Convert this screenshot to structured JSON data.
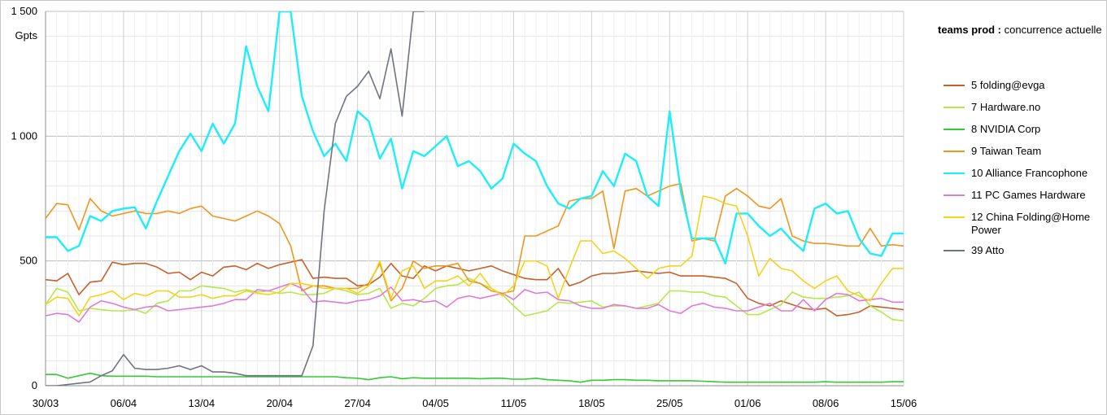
{
  "legend": {
    "title_bold": "teams prod :",
    "title_rest": "concurrence actuelle"
  },
  "chart_data": {
    "type": "line",
    "title": "teams prod : concurrence actuelle",
    "xlabel": "",
    "ylabel": "Gpts",
    "ylim": [
      0,
      1500
    ],
    "yticks": [
      0,
      500,
      1000,
      1500
    ],
    "ytick_labels": [
      "0",
      "500",
      "1 000",
      "1 500"
    ],
    "xtick_labels": [
      "30/03",
      "06/04",
      "13/04",
      "20/04",
      "27/04",
      "04/05",
      "11/05",
      "18/05",
      "25/05",
      "01/06",
      "08/06",
      "15/06"
    ],
    "grid": true,
    "legend_position": "right",
    "n_days": 78,
    "series": [
      {
        "name": "5 folding@evga",
        "color": "#c8602a",
        "values": [
          425,
          420,
          450,
          365,
          415,
          420,
          495,
          485,
          490,
          490,
          475,
          450,
          455,
          425,
          455,
          440,
          475,
          480,
          465,
          490,
          470,
          485,
          495,
          505,
          430,
          435,
          430,
          430,
          400,
          405,
          435,
          490,
          440,
          430,
          480,
          460,
          480,
          470,
          460,
          470,
          480,
          460,
          445,
          430,
          425,
          425,
          470,
          400,
          415,
          440,
          450,
          450,
          455,
          460,
          455,
          450,
          455,
          440,
          440,
          440,
          435,
          430,
          410,
          350,
          330,
          320,
          340,
          325,
          310,
          305,
          310,
          280,
          285,
          295,
          320,
          315,
          310,
          305
        ]
      },
      {
        "name": "7 Hardware.no",
        "color": "#b4e84a",
        "values": [
          325,
          390,
          375,
          300,
          310,
          305,
          300,
          300,
          305,
          290,
          330,
          340,
          380,
          380,
          400,
          395,
          390,
          375,
          385,
          375,
          380,
          370,
          375,
          365,
          365,
          370,
          390,
          380,
          365,
          370,
          390,
          310,
          330,
          320,
          350,
          390,
          400,
          405,
          430,
          410,
          390,
          365,
          320,
          280,
          290,
          300,
          335,
          330,
          335,
          340,
          315,
          320,
          320,
          310,
          320,
          330,
          380,
          380,
          375,
          375,
          360,
          355,
          320,
          285,
          285,
          305,
          325,
          375,
          355,
          350,
          350,
          355,
          360,
          375,
          320,
          295,
          265,
          260
        ]
      },
      {
        "name": "8 NVIDIA Corp",
        "color": "#33cc33",
        "values": [
          45,
          45,
          30,
          40,
          50,
          40,
          38,
          38,
          38,
          38,
          36,
          36,
          36,
          36,
          36,
          36,
          36,
          36,
          36,
          36,
          36,
          36,
          36,
          36,
          36,
          36,
          36,
          32,
          30,
          24,
          32,
          36,
          28,
          32,
          30,
          30,
          30,
          30,
          30,
          28,
          30,
          30,
          26,
          26,
          30,
          24,
          22,
          20,
          14,
          22,
          22,
          24,
          24,
          22,
          22,
          20,
          20,
          20,
          20,
          18,
          16,
          14,
          14,
          14,
          14,
          14,
          14,
          14,
          14,
          14,
          16,
          14,
          14,
          14,
          14,
          14,
          16,
          16
        ]
      },
      {
        "name": "9 Taiwan Team",
        "color": "#f0961e",
        "values": [
          670,
          730,
          725,
          625,
          750,
          700,
          680,
          690,
          700,
          690,
          690,
          700,
          690,
          710,
          720,
          680,
          670,
          660,
          680,
          700,
          680,
          650,
          560,
          380,
          400,
          400,
          390,
          390,
          390,
          410,
          490,
          340,
          390,
          500,
          470,
          480,
          480,
          490,
          420,
          410,
          380,
          370,
          380,
          600,
          600,
          620,
          640,
          740,
          750,
          750,
          780,
          550,
          780,
          790,
          760,
          780,
          800,
          810,
          580,
          590,
          580,
          760,
          790,
          760,
          720,
          710,
          750,
          600,
          580,
          570,
          570,
          565,
          560,
          560,
          630,
          560,
          565,
          560
        ]
      },
      {
        "name": "10 Alliance Francophone",
        "color": "#1eeefa",
        "values": [
          595,
          595,
          540,
          560,
          680,
          660,
          700,
          710,
          715,
          630,
          740,
          840,
          940,
          1010,
          940,
          1050,
          970,
          1050,
          1360,
          1200,
          1100,
          1500,
          1500,
          1160,
          1020,
          920,
          970,
          900,
          1100,
          1060,
          910,
          990,
          790,
          940,
          920,
          960,
          1000,
          880,
          900,
          860,
          790,
          830,
          970,
          930,
          900,
          800,
          730,
          710,
          750,
          760,
          860,
          800,
          930,
          900,
          760,
          720,
          1100,
          780,
          590,
          590,
          590,
          490,
          690,
          690,
          640,
          600,
          630,
          580,
          540,
          710,
          730,
          690,
          700,
          590,
          530,
          520,
          610,
          610
        ]
      },
      {
        "name": "11 PC Games Hardware",
        "color": "#e07ad8",
        "values": [
          280,
          290,
          285,
          255,
          315,
          340,
          330,
          315,
          305,
          315,
          320,
          300,
          305,
          310,
          315,
          320,
          330,
          345,
          345,
          385,
          380,
          395,
          410,
          390,
          335,
          340,
          335,
          330,
          340,
          345,
          360,
          395,
          340,
          345,
          335,
          340,
          315,
          350,
          360,
          350,
          360,
          370,
          345,
          385,
          370,
          375,
          345,
          340,
          320,
          310,
          310,
          325,
          320,
          310,
          310,
          325,
          300,
          290,
          320,
          330,
          315,
          310,
          300,
          300,
          315,
          330,
          300,
          300,
          345,
          300,
          345,
          370,
          365,
          340,
          345,
          350,
          335,
          335
        ]
      },
      {
        "name": "12 China Folding@Home Power",
        "color": "#f5d21e",
        "values": [
          325,
          355,
          350,
          280,
          355,
          365,
          380,
          345,
          370,
          360,
          380,
          380,
          355,
          355,
          365,
          350,
          360,
          360,
          380,
          370,
          365,
          375,
          410,
          410,
          400,
          390,
          390,
          390,
          370,
          400,
          500,
          350,
          460,
          480,
          390,
          420,
          420,
          440,
          400,
          450,
          390,
          360,
          400,
          500,
          500,
          480,
          350,
          470,
          580,
          580,
          530,
          540,
          510,
          470,
          430,
          470,
          480,
          480,
          520,
          760,
          750,
          730,
          720,
          600,
          440,
          510,
          470,
          460,
          420,
          390,
          420,
          440,
          380,
          360,
          340,
          410,
          470,
          470
        ]
      },
      {
        "name": "39 Atto",
        "color": "#6f7480",
        "values": [
          0,
          0,
          5,
          10,
          15,
          40,
          60,
          125,
          70,
          65,
          65,
          70,
          80,
          65,
          80,
          55,
          55,
          50,
          40,
          40,
          40,
          40,
          40,
          40,
          160,
          700,
          1050,
          1160,
          1200,
          1260,
          1150,
          1350,
          1080,
          1500,
          1500
        ]
      }
    ]
  }
}
